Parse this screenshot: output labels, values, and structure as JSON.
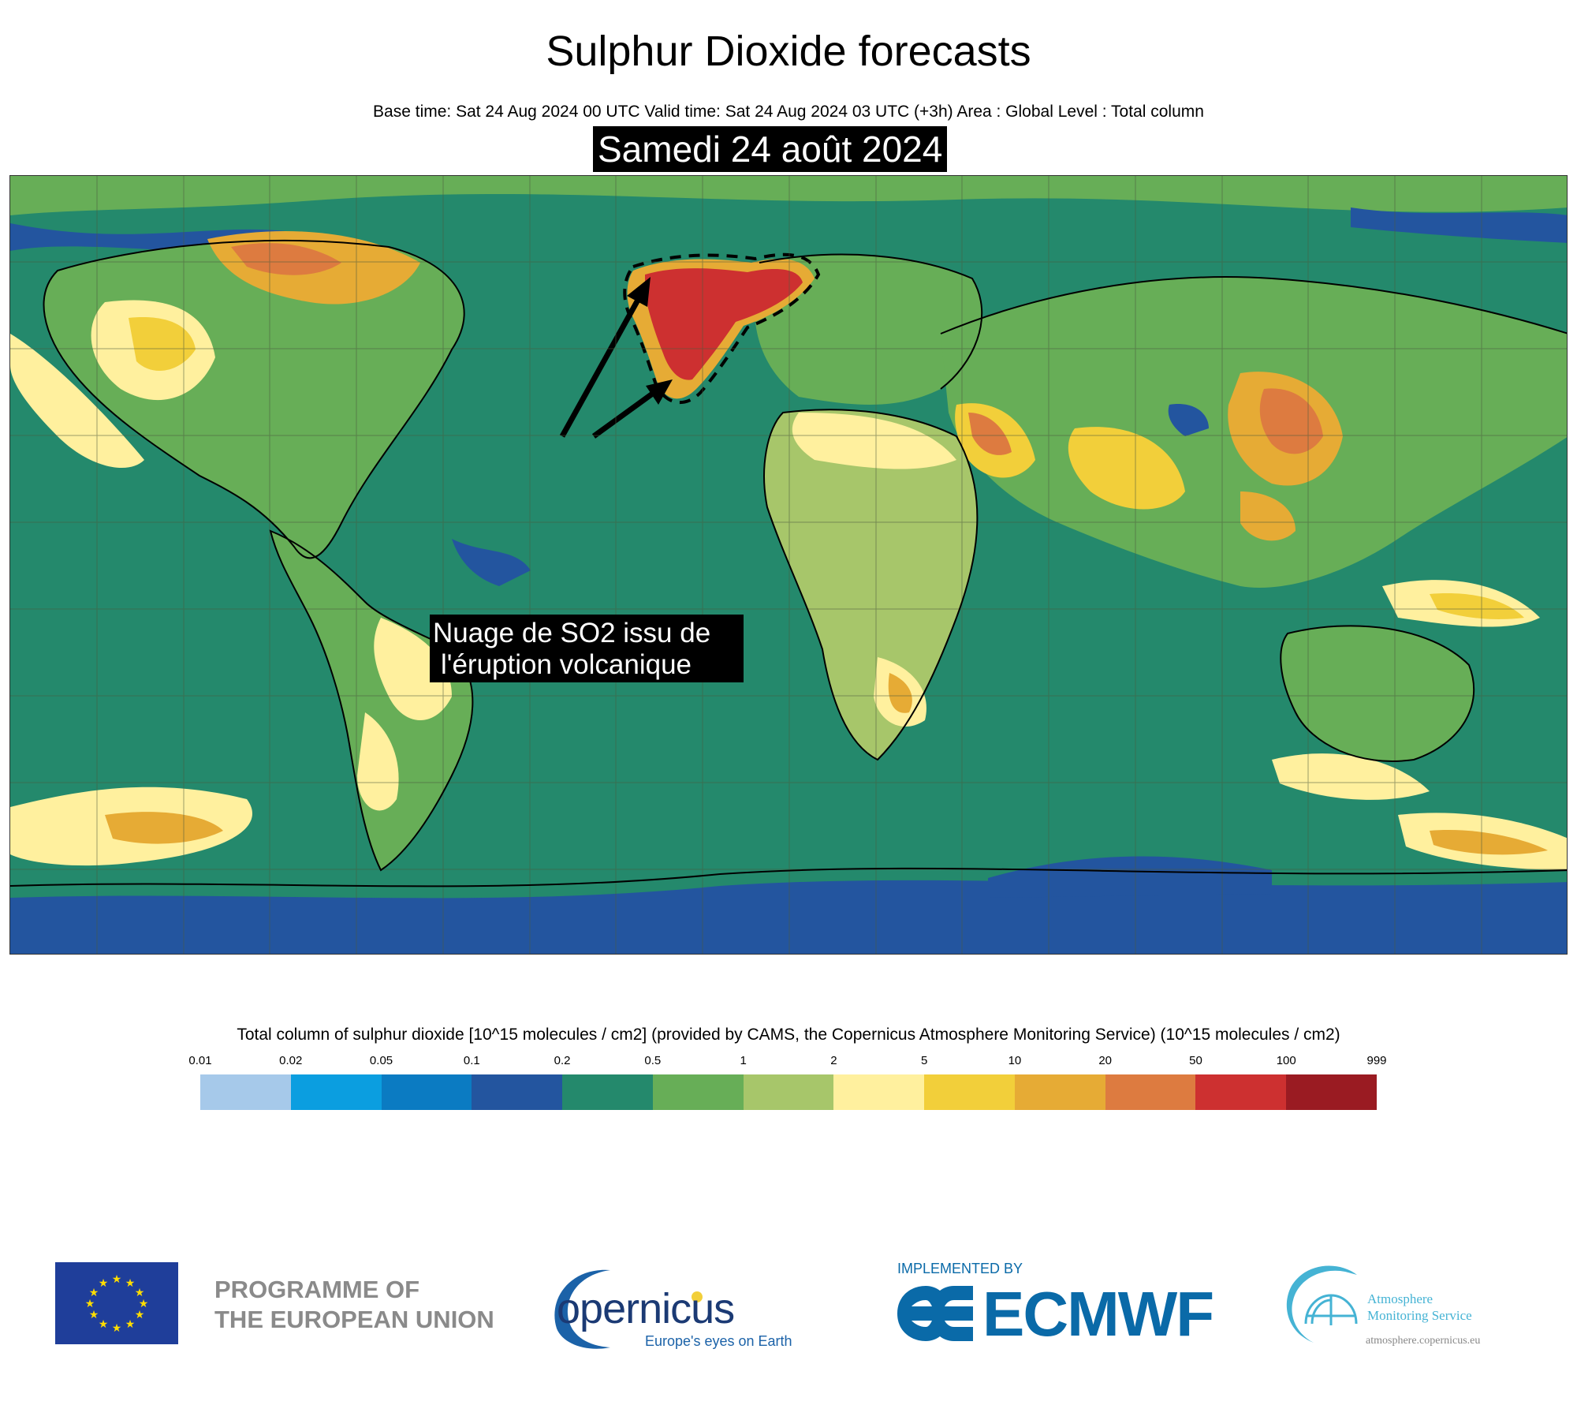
{
  "header": {
    "title": "Sulphur Dioxide forecasts",
    "subtitle": "Base time: Sat 24 Aug 2024 00 UTC Valid time: Sat 24 Aug 2024 03 UTC (+3h) Area : Global Level : Total column",
    "date_banner": "Samedi 24 août 2024"
  },
  "map": {
    "annotation_line1": "Nuage de SO2 issu de",
    "annotation_line2": "l'éruption volcanique",
    "ocean_color": "#24896c",
    "plume_color": "#c8332f"
  },
  "legend": {
    "title": "Total column of sulphur dioxide [10^15 molecules / cm2] (provided by CAMS, the Copernicus Atmosphere Monitoring Service) (10^15 molecules / cm2)",
    "ticks": [
      "0.01",
      "0.02",
      "0.05",
      "0.1",
      "0.2",
      "0.5",
      "1",
      "2",
      "5",
      "10",
      "20",
      "50",
      "100",
      "999"
    ],
    "colors": [
      "#a6c9ea",
      "#0b9ee0",
      "#0b7bc2",
      "#23559f",
      "#24896c",
      "#67ae57",
      "#a7c66a",
      "#fff09e",
      "#f2cf3a",
      "#e6ab35",
      "#dd7b40",
      "#cd3030",
      "#9a1b22"
    ]
  },
  "footer": {
    "eu_line1": "PROGRAMME OF",
    "eu_line2": "THE EUROPEAN UNION",
    "copernicus_word": "opernicus",
    "copernicus_tagline": "Europe's eyes on Earth",
    "implemented_by": "IMPLEMENTED BY",
    "ecmwf_word": "ECMWF",
    "ams_line1": "Atmosphere",
    "ams_line2": "Monitoring Service",
    "ams_url": "atmosphere.copernicus.eu"
  }
}
